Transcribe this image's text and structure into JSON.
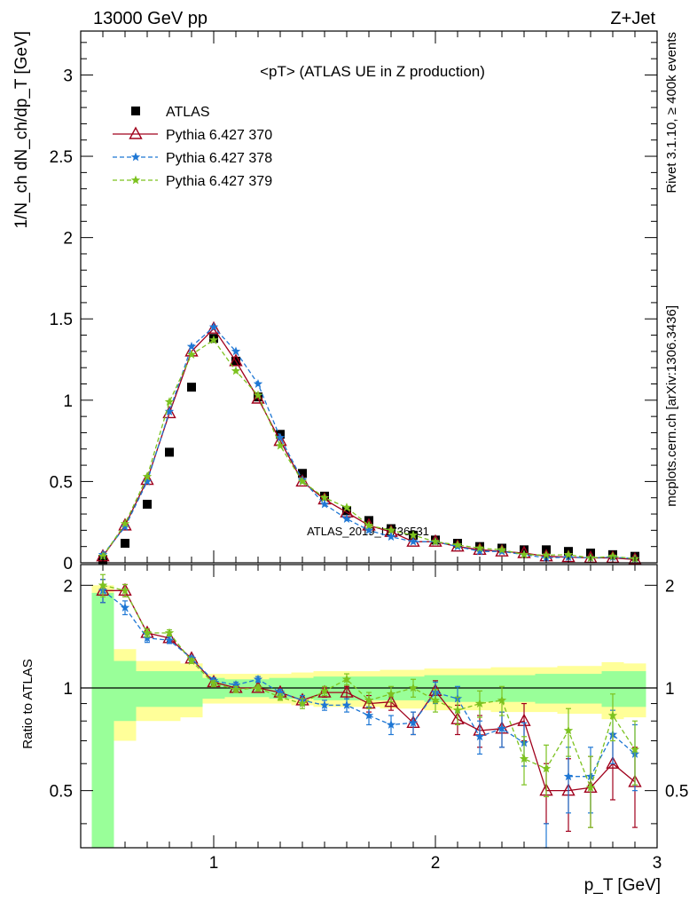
{
  "header": {
    "left": "13000 GeV pp",
    "right": "Z+Jet"
  },
  "side_text": {
    "top": "Rivet 3.1.10, ≥ 400k events",
    "bottom": "mcplots.cern.ch [arXiv:1306.3436]"
  },
  "chart_data": {
    "type": "line",
    "title": "<pT> (ATLAS UE in Z production)",
    "watermark": "ATLAS_2019_I1736531",
    "xlabel": "p_T [GeV]",
    "ylabel": "1/N_ch dN_ch/dp_T [GeV]",
    "ratio_ylabel": "Ratio to ATLAS",
    "xlim": [
      0.4,
      3.0
    ],
    "ylim": [
      0,
      3.27
    ],
    "ratio_ylim": [
      0.34,
      2.3
    ],
    "x_ticks": [
      "1",
      "2",
      "3"
    ],
    "y_ticks": [
      "0",
      "0.5",
      "1",
      "1.5",
      "2",
      "2.5",
      "3"
    ],
    "ratio_ticks": [
      "0.5",
      "1",
      "2"
    ],
    "legend_position": "top-left",
    "x": [
      0.5,
      0.6,
      0.7,
      0.8,
      0.9,
      1.0,
      1.1,
      1.2,
      1.3,
      1.4,
      1.5,
      1.6,
      1.7,
      1.8,
      1.9,
      2.0,
      2.1,
      2.2,
      2.3,
      2.4,
      2.5,
      2.6,
      2.7,
      2.8,
      2.9
    ],
    "series": [
      {
        "name": "ATLAS",
        "color": "#000000",
        "marker": "square",
        "values": [
          0.02,
          0.12,
          0.36,
          0.68,
          1.08,
          1.38,
          1.24,
          1.02,
          0.79,
          0.55,
          0.41,
          0.32,
          0.26,
          0.21,
          0.17,
          0.14,
          0.12,
          0.1,
          0.09,
          0.08,
          0.08,
          0.07,
          0.06,
          0.05,
          0.04
        ],
        "ratio_band_inner": [
          0.9,
          0.2,
          0.12,
          0.12,
          0.12,
          0.07,
          0.06,
          0.06,
          0.07,
          0.07,
          0.08,
          0.08,
          0.08,
          0.08,
          0.08,
          0.09,
          0.09,
          0.09,
          0.09,
          0.09,
          0.1,
          0.1,
          0.1,
          0.12,
          0.12
        ],
        "ratio_band_outer": [
          1.0,
          0.3,
          0.2,
          0.2,
          0.18,
          0.1,
          0.1,
          0.1,
          0.1,
          0.11,
          0.12,
          0.12,
          0.12,
          0.13,
          0.13,
          0.14,
          0.14,
          0.14,
          0.15,
          0.15,
          0.15,
          0.16,
          0.16,
          0.19,
          0.18
        ]
      },
      {
        "name": "Pythia 6.427 370",
        "color": "#a0001c",
        "marker": "triangle",
        "dash": "",
        "values": [
          0.04,
          0.23,
          0.51,
          0.92,
          1.3,
          1.44,
          1.24,
          1.01,
          0.75,
          0.5,
          0.39,
          0.31,
          0.23,
          0.19,
          0.13,
          0.13,
          0.1,
          0.08,
          0.07,
          0.06,
          0.04,
          0.035,
          0.03,
          0.03,
          0.02
        ],
        "ratio": [
          1.93,
          1.93,
          1.45,
          1.4,
          1.22,
          1.04,
          1.0,
          1.0,
          0.97,
          0.92,
          0.97,
          0.97,
          0.9,
          0.91,
          0.79,
          0.98,
          0.81,
          0.75,
          0.76,
          0.8,
          0.5,
          0.5,
          0.51,
          0.6,
          0.53
        ],
        "ratio_err": [
          0.15,
          0.08,
          0.04,
          0.03,
          0.02,
          0.02,
          0.02,
          0.02,
          0.02,
          0.03,
          0.03,
          0.04,
          0.05,
          0.05,
          0.06,
          0.07,
          0.08,
          0.08,
          0.09,
          0.1,
          0.1,
          0.12,
          0.12,
          0.13,
          0.14
        ]
      },
      {
        "name": "Pythia 6.427 378",
        "color": "#1f77d4",
        "marker": "star",
        "dash": "5 3",
        "values": [
          0.05,
          0.22,
          0.5,
          0.93,
          1.33,
          1.45,
          1.3,
          1.1,
          0.77,
          0.51,
          0.36,
          0.27,
          0.2,
          0.16,
          0.13,
          0.13,
          0.1,
          0.07,
          0.07,
          0.05,
          0.03,
          0.035,
          0.03,
          0.035,
          0.025
        ],
        "ratio": [
          1.93,
          1.72,
          1.4,
          1.38,
          1.22,
          1.05,
          1.02,
          1.06,
          0.97,
          0.92,
          0.89,
          0.89,
          0.83,
          0.78,
          0.79,
          0.97,
          0.93,
          0.72,
          0.76,
          0.69,
          0.3,
          0.55,
          0.55,
          0.73,
          0.64
        ],
        "ratio_err": [
          0.15,
          0.08,
          0.04,
          0.03,
          0.02,
          0.02,
          0.02,
          0.02,
          0.02,
          0.03,
          0.03,
          0.04,
          0.05,
          0.05,
          0.06,
          0.07,
          0.08,
          0.08,
          0.09,
          0.1,
          0.1,
          0.12,
          0.12,
          0.13,
          0.14
        ]
      },
      {
        "name": "Pythia 6.427 379",
        "color": "#7cc21f",
        "marker": "star",
        "dash": "5 3",
        "values": [
          0.04,
          0.24,
          0.53,
          0.99,
          1.28,
          1.37,
          1.18,
          1.03,
          0.72,
          0.5,
          0.4,
          0.34,
          0.23,
          0.2,
          0.17,
          0.13,
          0.11,
          0.09,
          0.08,
          0.05,
          0.047,
          0.05,
          0.03,
          0.04,
          0.025
        ],
        "ratio": [
          2.0,
          1.93,
          1.45,
          1.45,
          1.2,
          1.03,
          0.99,
          1.0,
          0.94,
          0.9,
          0.98,
          1.06,
          0.92,
          0.96,
          1.0,
          0.92,
          0.86,
          0.9,
          0.92,
          0.62,
          0.58,
          0.75,
          0.51,
          0.83,
          0.66
        ],
        "ratio_err": [
          0.15,
          0.08,
          0.04,
          0.03,
          0.02,
          0.02,
          0.02,
          0.02,
          0.02,
          0.03,
          0.03,
          0.04,
          0.05,
          0.05,
          0.06,
          0.07,
          0.08,
          0.08,
          0.09,
          0.1,
          0.1,
          0.12,
          0.12,
          0.13,
          0.14
        ]
      }
    ]
  }
}
